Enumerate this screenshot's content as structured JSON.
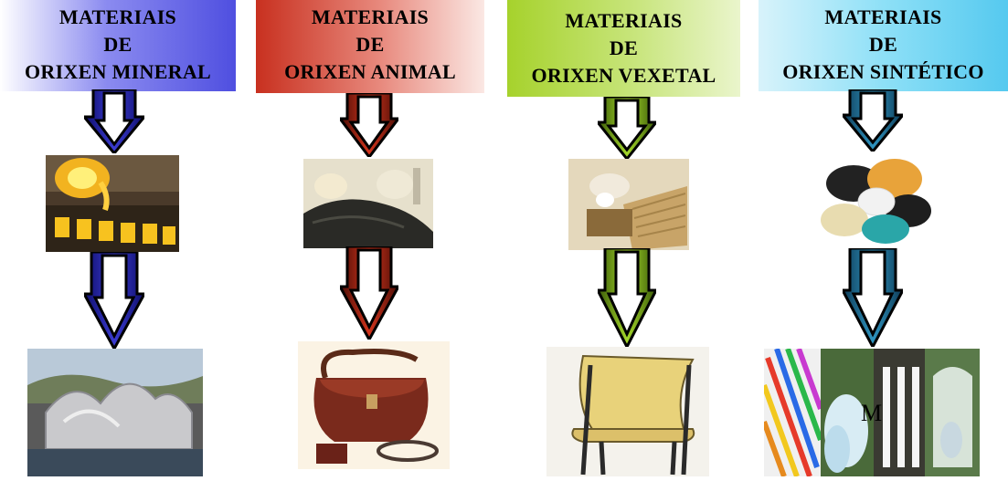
{
  "columns": [
    {
      "id": "mineral",
      "header": [
        "MATERIAIS",
        "DE",
        "ORIXEN MINERAL"
      ],
      "header_gradient": [
        "#ffffff",
        "#5a5ae6"
      ],
      "arrow_gradient": [
        "#0e0e6b",
        "#3b3bd0"
      ],
      "raw_image": "molten-metal-foundry-image",
      "product_image": "titanium-building-image"
    },
    {
      "id": "animal",
      "header": [
        "MATERIAIS",
        "DE",
        "ORIXEN ANIMAL"
      ],
      "header_gradient": [
        "#c83226",
        "#ffffff"
      ],
      "arrow_gradient": [
        "#4a0d06",
        "#d2341c"
      ],
      "raw_image": "leather-and-wool-image",
      "product_image": "leather-bag-image"
    },
    {
      "id": "vexetal",
      "header": [
        "MATERIAIS",
        "DE",
        "ORIXEN VEXETAL"
      ],
      "header_gradient": [
        "#9ccc29",
        "#ffffff"
      ],
      "arrow_gradient": [
        "#3a5a08",
        "#9fd127"
      ],
      "raw_image": "wood-and-fibers-image",
      "product_image": "wooden-chair-image"
    },
    {
      "id": "sintetico",
      "header": [
        "MATERIAIS",
        "DE",
        "ORIXEN SINTÉTICO"
      ],
      "header_gradient": [
        "#ffffff",
        "#5ccff2"
      ],
      "arrow_gradient": [
        "#0e3a55",
        "#2e94c0"
      ],
      "raw_image": "plastic-pellets-image",
      "product_image": "plastic-products-image",
      "overlay_text": "M"
    }
  ]
}
